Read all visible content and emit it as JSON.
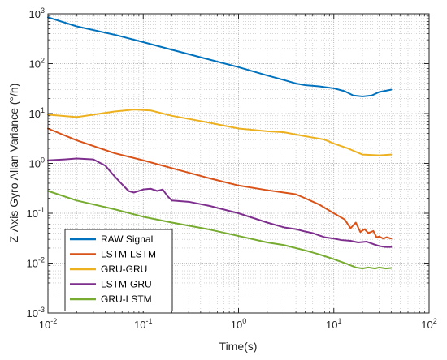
{
  "chart_data": {
    "type": "line",
    "xscale": "log",
    "yscale": "log",
    "xlabel": "Time(s)",
    "ylabel": "Z-Axis Gyro Allan Variance (°/h)",
    "xlim": [
      0.01,
      100
    ],
    "ylim": [
      0.001,
      1000
    ],
    "x_ticks": [
      {
        "value": 0.01,
        "base": "10",
        "exp": "-2"
      },
      {
        "value": 0.1,
        "base": "10",
        "exp": "-1"
      },
      {
        "value": 1,
        "base": "10",
        "exp": "0"
      },
      {
        "value": 10,
        "base": "10",
        "exp": "1"
      },
      {
        "value": 100,
        "base": "10",
        "exp": "2"
      }
    ],
    "y_ticks": [
      {
        "value": 0.001,
        "base": "10",
        "exp": "-3"
      },
      {
        "value": 0.01,
        "base": "10",
        "exp": "-2"
      },
      {
        "value": 0.1,
        "base": "10",
        "exp": "-1"
      },
      {
        "value": 1,
        "base": "10",
        "exp": "0"
      },
      {
        "value": 10,
        "base": "10",
        "exp": "1"
      },
      {
        "value": 100,
        "base": "10",
        "exp": "2"
      },
      {
        "value": 1000,
        "base": "10",
        "exp": "3"
      }
    ],
    "grid": true,
    "legend_position": "bottom-left",
    "series": [
      {
        "name": "RAW Signal",
        "color": "#0072BD",
        "points": [
          [
            0.01,
            850
          ],
          [
            0.02,
            560
          ],
          [
            0.05,
            380
          ],
          [
            0.1,
            270
          ],
          [
            0.2,
            190
          ],
          [
            0.5,
            120
          ],
          [
            1,
            85
          ],
          [
            2,
            58
          ],
          [
            3,
            47
          ],
          [
            4,
            40
          ],
          [
            5,
            37
          ],
          [
            7,
            35
          ],
          [
            10,
            32
          ],
          [
            13,
            28
          ],
          [
            16,
            23
          ],
          [
            20,
            22
          ],
          [
            25,
            23
          ],
          [
            30,
            27
          ],
          [
            40,
            30
          ]
        ]
      },
      {
        "name": "LSTM-LSTM",
        "color": "#D95319",
        "points": [
          [
            0.01,
            5
          ],
          [
            0.02,
            2.9
          ],
          [
            0.05,
            1.6
          ],
          [
            0.1,
            1.15
          ],
          [
            0.2,
            0.8
          ],
          [
            0.5,
            0.5
          ],
          [
            1,
            0.36
          ],
          [
            2,
            0.29
          ],
          [
            3,
            0.26
          ],
          [
            4,
            0.24
          ],
          [
            5,
            0.2
          ],
          [
            7,
            0.15
          ],
          [
            10,
            0.1
          ],
          [
            13,
            0.075
          ],
          [
            15,
            0.05
          ],
          [
            17,
            0.065
          ],
          [
            19,
            0.042
          ],
          [
            21,
            0.048
          ],
          [
            23,
            0.04
          ],
          [
            26,
            0.044
          ],
          [
            28,
            0.033
          ],
          [
            30,
            0.034
          ],
          [
            33,
            0.031
          ],
          [
            36,
            0.033
          ],
          [
            40,
            0.031
          ]
        ]
      },
      {
        "name": "GRU-GRU",
        "color": "#EDB120",
        "points": [
          [
            0.01,
            9.5
          ],
          [
            0.02,
            8.5
          ],
          [
            0.03,
            9.5
          ],
          [
            0.05,
            11
          ],
          [
            0.08,
            12
          ],
          [
            0.12,
            11.5
          ],
          [
            0.2,
            9
          ],
          [
            0.5,
            6.5
          ],
          [
            1,
            5
          ],
          [
            2,
            4.4
          ],
          [
            3,
            4.2
          ],
          [
            5,
            3.5
          ],
          [
            8,
            3
          ],
          [
            10,
            2.5
          ],
          [
            14,
            2
          ],
          [
            20,
            1.5
          ],
          [
            30,
            1.45
          ],
          [
            40,
            1.5
          ]
        ]
      },
      {
        "name": "LSTM-GRU",
        "color": "#7E2F8E",
        "points": [
          [
            0.01,
            1.15
          ],
          [
            0.015,
            1.2
          ],
          [
            0.02,
            1.25
          ],
          [
            0.03,
            1.2
          ],
          [
            0.04,
            0.9
          ],
          [
            0.05,
            0.55
          ],
          [
            0.06,
            0.38
          ],
          [
            0.07,
            0.28
          ],
          [
            0.08,
            0.26
          ],
          [
            0.1,
            0.3
          ],
          [
            0.12,
            0.31
          ],
          [
            0.14,
            0.28
          ],
          [
            0.16,
            0.3
          ],
          [
            0.18,
            0.22
          ],
          [
            0.2,
            0.18
          ],
          [
            0.3,
            0.17
          ],
          [
            0.5,
            0.14
          ],
          [
            1,
            0.1
          ],
          [
            2,
            0.065
          ],
          [
            3,
            0.052
          ],
          [
            4,
            0.048
          ],
          [
            5,
            0.043
          ],
          [
            6,
            0.04
          ],
          [
            7,
            0.036
          ],
          [
            8,
            0.033
          ],
          [
            10,
            0.031
          ],
          [
            12,
            0.029
          ],
          [
            15,
            0.028
          ],
          [
            18,
            0.026
          ],
          [
            22,
            0.027
          ],
          [
            26,
            0.024
          ],
          [
            30,
            0.022
          ],
          [
            35,
            0.021
          ],
          [
            40,
            0.021
          ]
        ]
      },
      {
        "name": "GRU-LSTM",
        "color": "#77AC30",
        "points": [
          [
            0.01,
            0.28
          ],
          [
            0.02,
            0.18
          ],
          [
            0.05,
            0.12
          ],
          [
            0.1,
            0.085
          ],
          [
            0.2,
            0.065
          ],
          [
            0.5,
            0.047
          ],
          [
            1,
            0.035
          ],
          [
            2,
            0.026
          ],
          [
            3,
            0.023
          ],
          [
            4,
            0.02
          ],
          [
            5,
            0.018
          ],
          [
            7,
            0.015
          ],
          [
            10,
            0.012
          ],
          [
            14,
            0.0095
          ],
          [
            17,
            0.0082
          ],
          [
            20,
            0.0078
          ],
          [
            23,
            0.0082
          ],
          [
            27,
            0.0078
          ],
          [
            30,
            0.0082
          ],
          [
            35,
            0.0078
          ],
          [
            40,
            0.008
          ]
        ]
      }
    ]
  }
}
